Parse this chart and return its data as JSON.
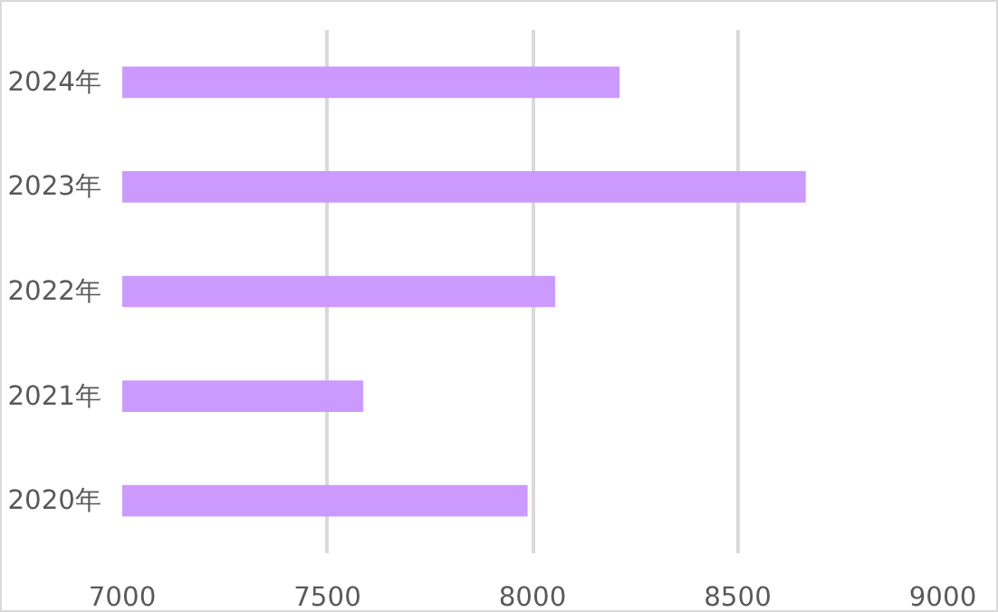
{
  "chart_data": {
    "type": "bar",
    "orientation": "horizontal",
    "categories": [
      "2024年",
      "2023年",
      "2022年",
      "2021年",
      "2020年"
    ],
    "values": [
      8212,
      8666,
      8055,
      7587,
      7988
    ],
    "color": "#cc99ff",
    "xlim": [
      7000,
      9000
    ],
    "xticks": [
      7000,
      7500,
      8000,
      8500,
      9000
    ],
    "grid": "x"
  }
}
